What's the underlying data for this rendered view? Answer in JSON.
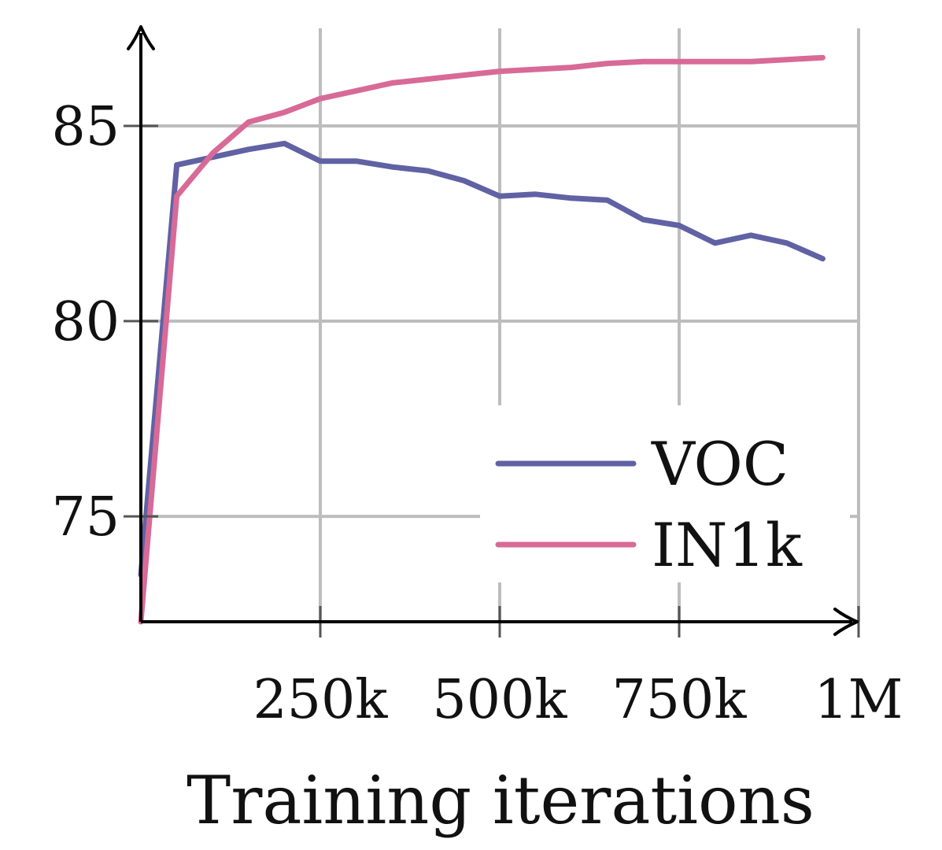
{
  "chart_data": {
    "type": "line",
    "xlabel": "Training iterations",
    "ylabel": "",
    "xlim": [
      0,
      1000000
    ],
    "ylim": [
      72.3,
      87.5
    ],
    "grid": true,
    "legend_position": "lower-right",
    "x_ticks": [
      {
        "value": 250000,
        "label": "250k"
      },
      {
        "value": 500000,
        "label": "500k"
      },
      {
        "value": 750000,
        "label": "750k"
      },
      {
        "value": 1000000,
        "label": "1M"
      }
    ],
    "y_ticks": [
      {
        "value": 75,
        "label": "75"
      },
      {
        "value": 80,
        "label": "80"
      },
      {
        "value": 85,
        "label": "85"
      }
    ],
    "series": [
      {
        "name": "VOC",
        "color": "#6062a4",
        "x": [
          0,
          50000,
          100000,
          150000,
          200000,
          250000,
          300000,
          350000,
          400000,
          450000,
          500000,
          550000,
          600000,
          650000,
          700000,
          750000,
          800000,
          850000,
          900000,
          950000
        ],
        "y": [
          73.5,
          84.0,
          84.2,
          84.4,
          84.55,
          84.1,
          84.1,
          83.95,
          83.85,
          83.6,
          83.2,
          83.25,
          83.15,
          83.1,
          82.6,
          82.45,
          82.0,
          82.2,
          82.0,
          81.6
        ]
      },
      {
        "name": "IN1k",
        "color": "#d86a97",
        "x": [
          0,
          50000,
          100000,
          150000,
          200000,
          250000,
          300000,
          350000,
          400000,
          450000,
          500000,
          550000,
          600000,
          650000,
          700000,
          750000,
          800000,
          850000,
          900000,
          950000
        ],
        "y": [
          72.3,
          83.2,
          84.3,
          85.1,
          85.35,
          85.7,
          85.9,
          86.1,
          86.2,
          86.3,
          86.4,
          86.45,
          86.5,
          86.6,
          86.65,
          86.65,
          86.65,
          86.65,
          86.7,
          86.75
        ]
      }
    ]
  }
}
